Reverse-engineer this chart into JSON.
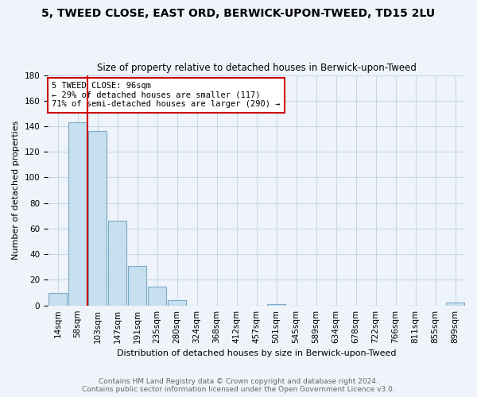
{
  "title": "5, TWEED CLOSE, EAST ORD, BERWICK-UPON-TWEED, TD15 2LU",
  "subtitle": "Size of property relative to detached houses in Berwick-upon-Tweed",
  "xlabel": "Distribution of detached houses by size in Berwick-upon-Tweed",
  "ylabel": "Number of detached properties",
  "footer_line1": "Contains HM Land Registry data © Crown copyright and database right 2024.",
  "footer_line2": "Contains public sector information licensed under the Open Government Licence v3.0.",
  "bar_labels": [
    "14sqm",
    "58sqm",
    "103sqm",
    "147sqm",
    "191sqm",
    "235sqm",
    "280sqm",
    "324sqm",
    "368sqm",
    "412sqm",
    "457sqm",
    "501sqm",
    "545sqm",
    "589sqm",
    "634sqm",
    "678sqm",
    "722sqm",
    "766sqm",
    "811sqm",
    "855sqm",
    "899sqm"
  ],
  "bar_values": [
    10,
    143,
    136,
    66,
    31,
    15,
    4,
    0,
    0,
    0,
    0,
    1,
    0,
    0,
    0,
    0,
    0,
    0,
    0,
    0,
    2
  ],
  "bar_color": "#c8dff0",
  "bar_edge_color": "#7aaac8",
  "grid_color": "#c8d8e8",
  "background_color": "#eef4fa",
  "plot_bg_color": "#eef4fa",
  "ylim": [
    0,
    180
  ],
  "yticks": [
    0,
    20,
    40,
    60,
    80,
    100,
    120,
    140,
    160,
    180
  ],
  "property_line_bar_idx": 1,
  "annotation_title": "5 TWEED CLOSE: 96sqm",
  "annotation_line1": "← 29% of detached houses are smaller (117)",
  "annotation_line2": "71% of semi-detached houses are larger (290) →",
  "annotation_box_color": "#ffffff",
  "annotation_box_edge": "#cc0000",
  "property_line_color": "#cc0000",
  "title_fontsize": 10,
  "subtitle_fontsize": 8.5,
  "ylabel_fontsize": 8,
  "xlabel_fontsize": 8,
  "tick_fontsize": 7.5,
  "footer_fontsize": 6.5,
  "footer_color": "#666666"
}
